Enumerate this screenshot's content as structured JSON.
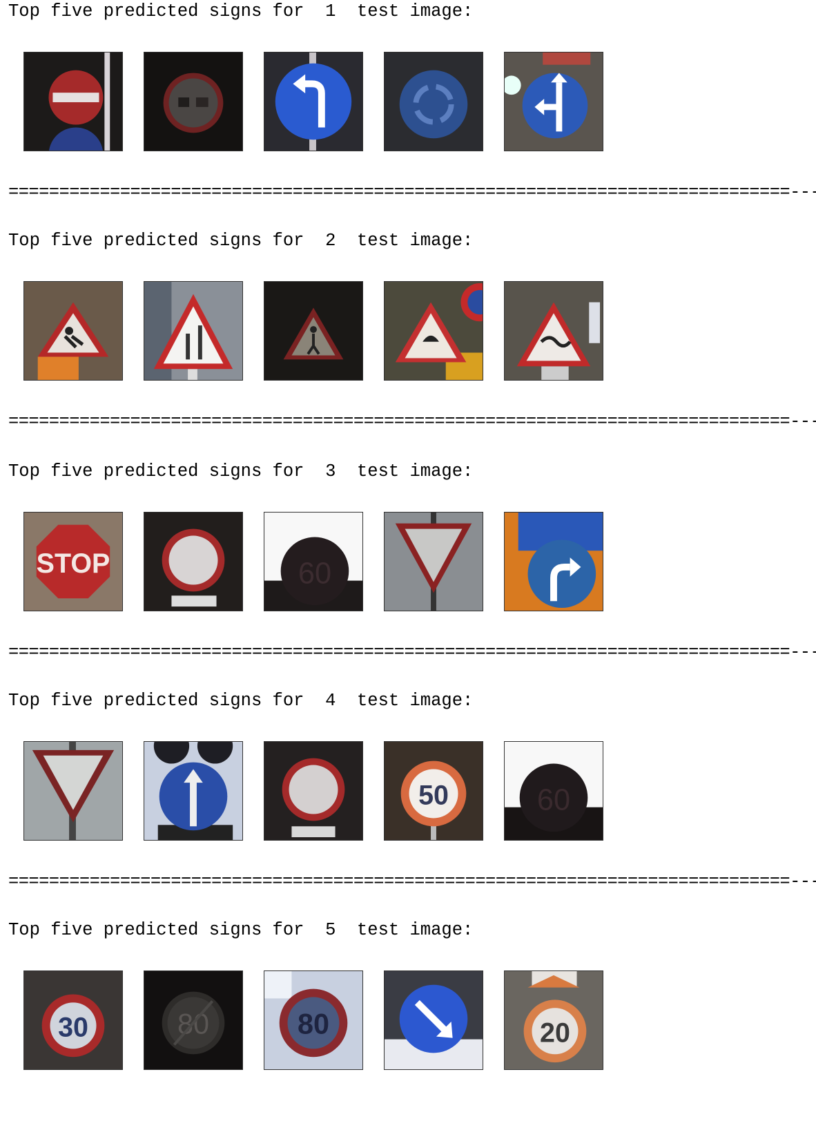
{
  "output": {
    "separator": "=============================================================================---",
    "blocks": [
      {
        "heading": "Top five predicted signs for  1  test image:",
        "thumbnails": [
          {
            "icon": "no-entry-sign-icon"
          },
          {
            "icon": "no-passing-trucks-sign-icon"
          },
          {
            "icon": "turn-left-ahead-sign-icon"
          },
          {
            "icon": "roundabout-sign-icon"
          },
          {
            "icon": "go-straight-or-left-sign-icon"
          }
        ]
      },
      {
        "heading": "Top five predicted signs for  2  test image:",
        "thumbnails": [
          {
            "icon": "road-work-sign-icon"
          },
          {
            "icon": "road-narrows-sign-icon"
          },
          {
            "icon": "pedestrians-sign-icon"
          },
          {
            "icon": "road-work-sign-icon"
          },
          {
            "icon": "slippery-road-sign-icon"
          }
        ]
      },
      {
        "heading": "Top five predicted signs for  3  test image:",
        "thumbnails": [
          {
            "icon": "stop-sign-icon",
            "text": "STOP"
          },
          {
            "icon": "no-vehicles-sign-icon"
          },
          {
            "icon": "speed-limit-sign-icon",
            "text": "60"
          },
          {
            "icon": "yield-sign-icon"
          },
          {
            "icon": "turn-right-ahead-sign-icon"
          }
        ]
      },
      {
        "heading": "Top five predicted signs for  4  test image:",
        "thumbnails": [
          {
            "icon": "yield-sign-icon"
          },
          {
            "icon": "ahead-only-sign-icon"
          },
          {
            "icon": "no-vehicles-sign-icon"
          },
          {
            "icon": "speed-limit-sign-icon",
            "text": "50"
          },
          {
            "icon": "speed-limit-sign-icon",
            "text": "60"
          }
        ]
      },
      {
        "heading": "Top five predicted signs for  5  test image:",
        "thumbnails": [
          {
            "icon": "speed-limit-sign-icon",
            "text": "30"
          },
          {
            "icon": "end-of-speed-limit-sign-icon",
            "text": "80"
          },
          {
            "icon": "speed-limit-sign-icon",
            "text": "80"
          },
          {
            "icon": "keep-right-sign-icon"
          },
          {
            "icon": "speed-limit-sign-icon",
            "text": "20"
          }
        ]
      }
    ]
  }
}
